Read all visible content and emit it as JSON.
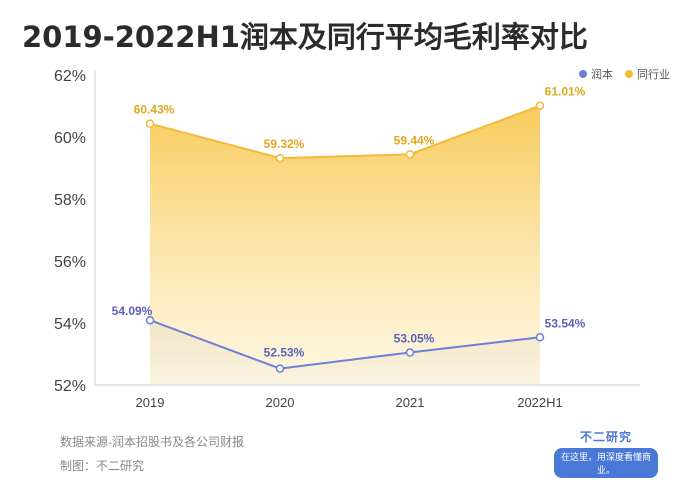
{
  "title": "2019-2022H1润本及同行平均毛利率对比",
  "legend": {
    "items": [
      {
        "label": "润本",
        "color": "#6f7fd8"
      },
      {
        "label": "同行业",
        "color": "#f3b93a"
      }
    ]
  },
  "footer": {
    "source": "数据来源-润本招股书及各公司财报",
    "maker": "制图：不二研究"
  },
  "brand": {
    "name": "不二研究",
    "slogan": "在这里，用深度看懂商业。"
  },
  "chart_data": {
    "type": "area",
    "categories": [
      "2019",
      "2020",
      "2021",
      "2022H1"
    ],
    "series": [
      {
        "name": "润本",
        "values": [
          54.09,
          52.53,
          53.05,
          53.54
        ],
        "labels": [
          "54.09%",
          "52.53%",
          "53.05%",
          "53.54%"
        ],
        "color": "#6f7fd8"
      },
      {
        "name": "同行业",
        "values": [
          60.43,
          59.32,
          59.44,
          61.01
        ],
        "labels": [
          "60.43%",
          "59.32%",
          "59.44%",
          "61.01%"
        ],
        "color": "#f3b93a"
      }
    ],
    "yticks": [
      "52%",
      "54%",
      "56%",
      "58%",
      "60%",
      "62%"
    ],
    "ytick_values": [
      52,
      54,
      56,
      58,
      60,
      62
    ],
    "ylim": [
      52,
      62
    ],
    "grid": false,
    "legend_position": "top-right"
  }
}
